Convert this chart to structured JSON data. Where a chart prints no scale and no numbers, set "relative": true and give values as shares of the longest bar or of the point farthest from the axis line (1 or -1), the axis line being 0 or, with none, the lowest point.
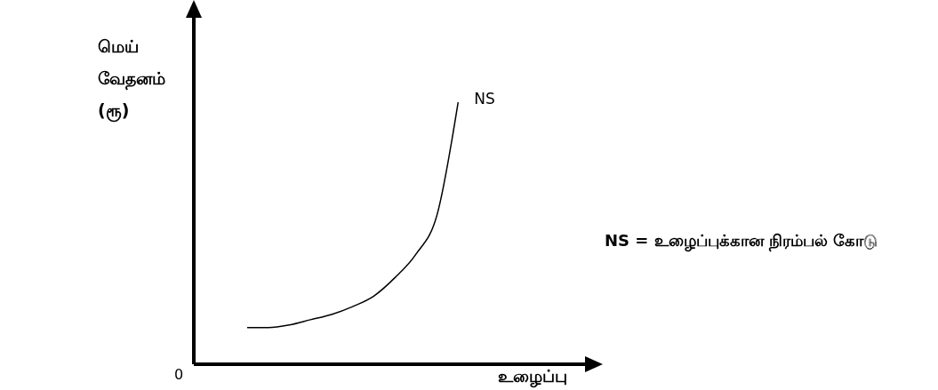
{
  "chart_data": {
    "type": "line",
    "relative": true,
    "xlabel": "உழைப்பு",
    "ylabel": "மெய் வேதனம் (ரூ)",
    "annotations": [
      "0",
      "NS = உழைப்புக்கான நிரம்பல் கோடு"
    ],
    "categories": [
      null,
      null,
      null,
      null,
      null,
      null,
      null,
      null,
      null,
      null,
      null
    ],
    "marker": "none",
    "grid": false,
    "legend": false,
    "series": [
      {
        "name": "NS",
        "color": "#000000",
        "values": [
          0.14,
          0.14,
          0.15,
          0.17,
          0.19,
          0.22,
          0.26,
          0.33,
          0.42,
          0.57,
          1
        ]
      }
    ]
  }
}
